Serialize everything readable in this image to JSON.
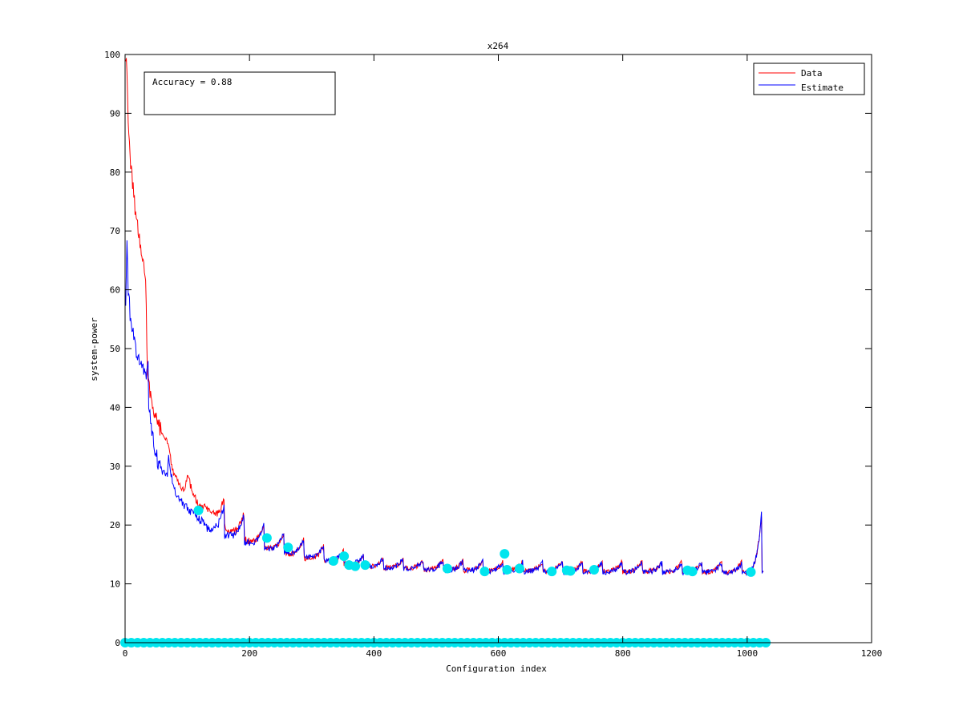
{
  "chart_data": {
    "type": "line",
    "title": "x264",
    "xlabel": "Configuration index",
    "ylabel": "system-power",
    "xlim": [
      0,
      1200
    ],
    "ylim": [
      0,
      100
    ],
    "xticks": [
      0,
      200,
      400,
      600,
      800,
      1000,
      1200
    ],
    "yticks": [
      0,
      10,
      20,
      30,
      40,
      50,
      60,
      70,
      80,
      90,
      100
    ],
    "grid": false,
    "legend_position": "top-right",
    "annotation": "Accuracy = 0.88",
    "colors": {
      "data": "#ff0000",
      "estimate": "#0000ff",
      "samples": "#00e5ee"
    },
    "x_range": [
      1,
      1026
    ],
    "series": [
      {
        "name": "Data",
        "color": "#ff0000",
        "key_points": [
          [
            1,
            100
          ],
          [
            3,
            96
          ],
          [
            5,
            88
          ],
          [
            8,
            83
          ],
          [
            12,
            78
          ],
          [
            16,
            74
          ],
          [
            20,
            71
          ],
          [
            25,
            67
          ],
          [
            30,
            64
          ],
          [
            33,
            62
          ],
          [
            36,
            45
          ],
          [
            40,
            43
          ],
          [
            45,
            40
          ],
          [
            50,
            38
          ],
          [
            55,
            37
          ],
          [
            60,
            35
          ],
          [
            65,
            35
          ],
          [
            70,
            34
          ],
          [
            75,
            30
          ],
          [
            85,
            27
          ],
          [
            95,
            26
          ],
          [
            100,
            28.5
          ],
          [
            110,
            25
          ],
          [
            120,
            23
          ],
          [
            130,
            23
          ],
          [
            140,
            22
          ],
          [
            160,
            20
          ],
          [
            180,
            18.5
          ],
          [
            200,
            17.5
          ],
          [
            230,
            16.5
          ],
          [
            260,
            15.5
          ],
          [
            300,
            14.5
          ],
          [
            350,
            13.8
          ],
          [
            400,
            13.2
          ],
          [
            500,
            12.8
          ],
          [
            600,
            12.6
          ],
          [
            800,
            12.5
          ],
          [
            1000,
            12.4
          ],
          [
            1026,
            12.6
          ]
        ]
      },
      {
        "name": "Estimate",
        "color": "#0000ff",
        "key_points": [
          [
            1,
            58
          ],
          [
            2,
            62
          ],
          [
            3,
            67.5
          ],
          [
            5,
            60
          ],
          [
            8,
            56
          ],
          [
            12,
            53
          ],
          [
            16,
            50
          ],
          [
            20,
            48.5
          ],
          [
            25,
            47
          ],
          [
            30,
            46.5
          ],
          [
            35,
            45.5
          ],
          [
            37,
            47
          ],
          [
            38,
            40
          ],
          [
            42,
            37
          ],
          [
            45,
            35
          ],
          [
            50,
            32
          ],
          [
            55,
            30
          ],
          [
            60,
            29
          ],
          [
            68,
            28.5
          ],
          [
            70,
            32
          ],
          [
            75,
            28
          ],
          [
            80,
            26
          ],
          [
            90,
            24
          ],
          [
            100,
            22.8
          ],
          [
            110,
            22
          ],
          [
            120,
            21
          ],
          [
            130,
            20
          ],
          [
            140,
            19.5
          ],
          [
            150,
            19
          ],
          [
            170,
            18.5
          ],
          [
            200,
            17.2
          ],
          [
            230,
            16.3
          ],
          [
            260,
            15.6
          ],
          [
            300,
            14.8
          ],
          [
            350,
            13.8
          ],
          [
            400,
            13.2
          ],
          [
            500,
            12.7
          ],
          [
            600,
            12.5
          ],
          [
            800,
            12.4
          ],
          [
            1000,
            12.3
          ],
          [
            1026,
            12.6
          ]
        ]
      },
      {
        "name": "",
        "type": "scatter",
        "color": "#00e5ee",
        "points": [
          [
            118,
            22.5
          ],
          [
            228,
            17.8
          ],
          [
            262,
            16.2
          ],
          [
            335,
            13.9
          ],
          [
            352,
            14.7
          ],
          [
            360,
            13.2
          ],
          [
            370,
            13.0
          ],
          [
            386,
            13.2
          ],
          [
            518,
            12.6
          ],
          [
            578,
            12.1
          ],
          [
            610,
            15.1
          ],
          [
            614,
            12.4
          ],
          [
            634,
            12.6
          ],
          [
            686,
            12.1
          ],
          [
            710,
            12.3
          ],
          [
            716,
            12.2
          ],
          [
            754,
            12.4
          ],
          [
            904,
            12.3
          ],
          [
            912,
            12.1
          ],
          [
            1006,
            12.0
          ]
        ],
        "baseline_points": {
          "y": 0,
          "x_from": 0,
          "x_to": 1030,
          "count": 104
        }
      }
    ]
  }
}
